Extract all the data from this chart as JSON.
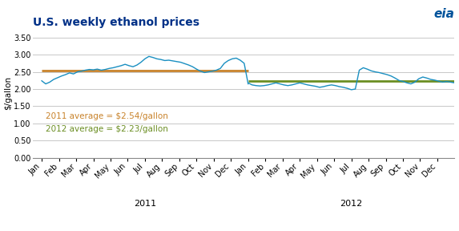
{
  "title": "U.S. weekly ethanol prices",
  "ylabel": "$/gallon",
  "ylim": [
    0.0,
    3.75
  ],
  "yticks": [
    0.0,
    0.5,
    1.0,
    1.5,
    2.0,
    2.5,
    3.0,
    3.5
  ],
  "avg_2011": 2.54,
  "avg_2012": 2.23,
  "avg_2011_color": "#c8822a",
  "avg_2012_color": "#6b8e23",
  "line_color": "#1a8fc1",
  "annotation_2011": "2011 average = $2.54/gallon",
  "annotation_2012": "2012 average = $2.23/gallon",
  "annotation_color_2011": "#c8822a",
  "annotation_color_2012": "#6b8e23",
  "background_color": "#ffffff",
  "grid_color": "#c8c8c8",
  "title_fontsize": 10,
  "ylabel_fontsize": 7.5,
  "tick_fontsize": 7,
  "anno_fontsize": 7.5,
  "months_all": [
    "Jan",
    "Feb",
    "Mar",
    "Apr",
    "May",
    "Jun",
    "Jul",
    "Aug",
    "Sep",
    "Oct",
    "Nov",
    "Dec",
    "Jan",
    "Feb",
    "Mar",
    "Apr",
    "May",
    "Jun",
    "Jul",
    "Aug",
    "Sep",
    "Oct",
    "Nov",
    "Dec"
  ],
  "prices": [
    2.24,
    2.15,
    2.2,
    2.28,
    2.33,
    2.38,
    2.42,
    2.47,
    2.44,
    2.5,
    2.52,
    2.55,
    2.57,
    2.56,
    2.58,
    2.55,
    2.57,
    2.6,
    2.62,
    2.65,
    2.68,
    2.72,
    2.68,
    2.65,
    2.7,
    2.78,
    2.88,
    2.95,
    2.92,
    2.88,
    2.86,
    2.83,
    2.84,
    2.82,
    2.8,
    2.78,
    2.74,
    2.7,
    2.65,
    2.58,
    2.52,
    2.48,
    2.5,
    2.52,
    2.55,
    2.6,
    2.75,
    2.83,
    2.88,
    2.9,
    2.84,
    2.75,
    2.15,
    2.18,
    2.12,
    2.1,
    2.09,
    2.1,
    2.12,
    2.15,
    2.18,
    2.15,
    2.12,
    2.1,
    2.12,
    2.15,
    2.18,
    2.15,
    2.12,
    2.1,
    2.08,
    2.05,
    2.07,
    2.1,
    2.12,
    2.1,
    2.07,
    2.05,
    2.02,
    1.98,
    2.0,
    2.55,
    2.62,
    2.58,
    2.53,
    2.5,
    2.48,
    2.45,
    2.42,
    2.38,
    2.32,
    2.25,
    2.22,
    2.18,
    2.15,
    2.2,
    2.3,
    2.35,
    2.32,
    2.28,
    2.26,
    2.23,
    2.2,
    2.22,
    2.2,
    2.18
  ],
  "n_2011": 53,
  "n_2012": 53
}
